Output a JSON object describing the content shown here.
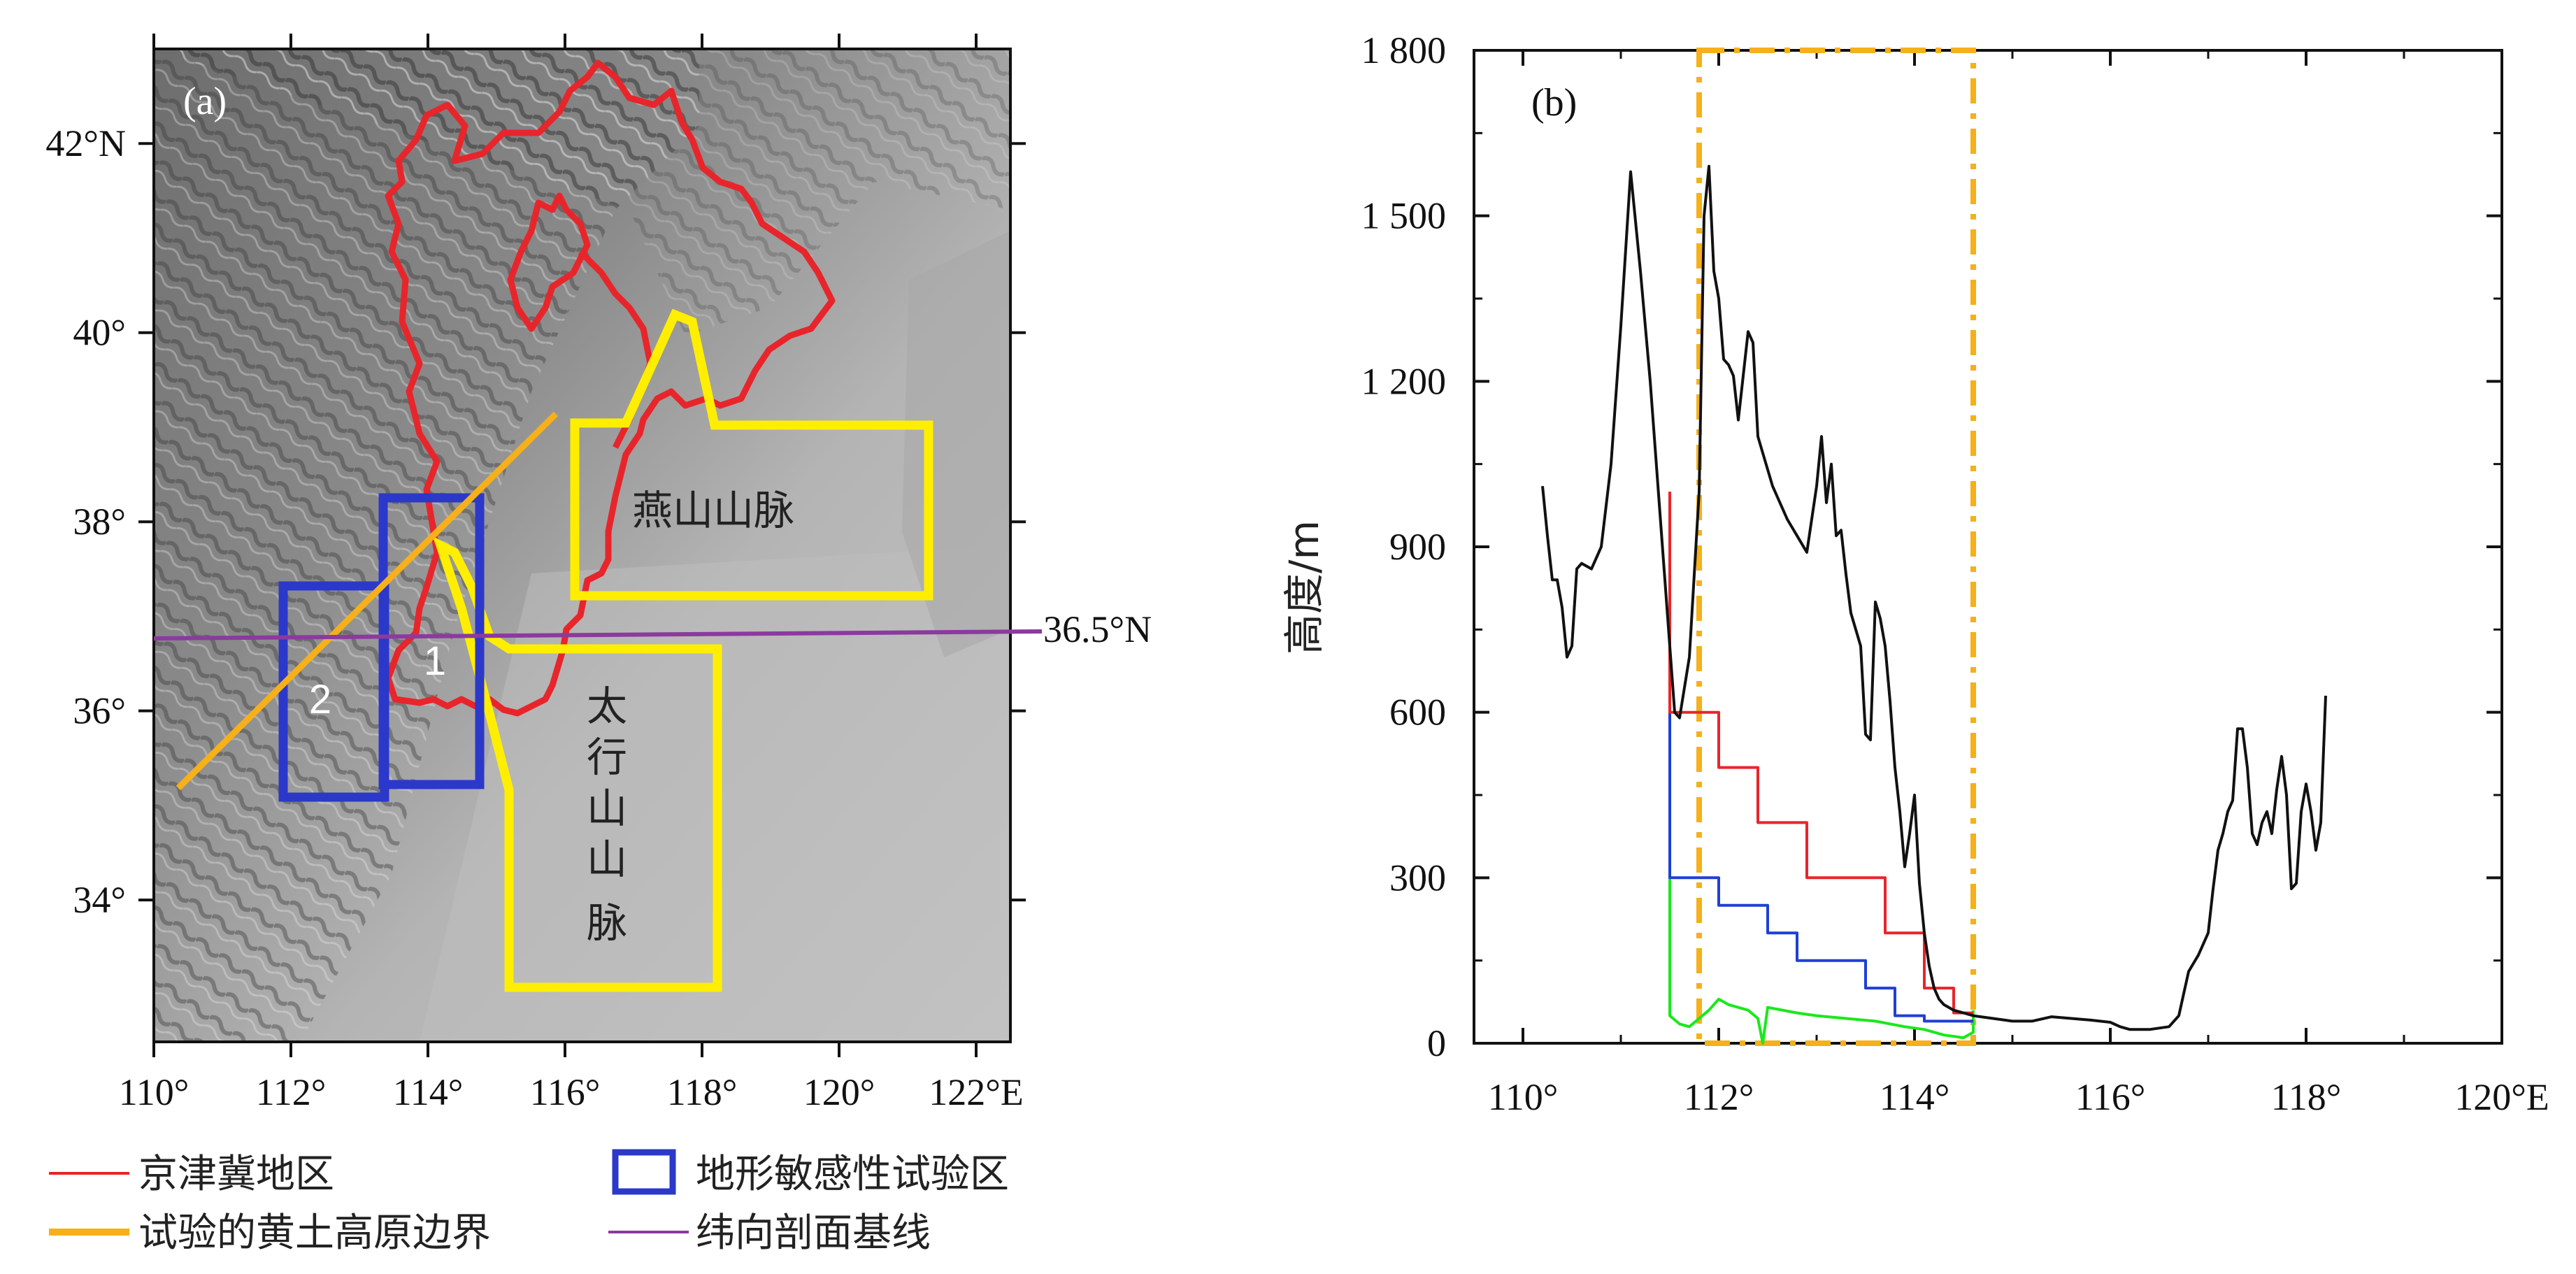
{
  "chart_data": [
    {
      "type": "map",
      "panel_label": "(a)",
      "x_ticks": [
        "110°",
        "112°",
        "114°",
        "116°",
        "118°",
        "120°",
        "122°E"
      ],
      "y_ticks": [
        "42°N",
        "40°",
        "38°",
        "36°",
        "34°"
      ],
      "xlim": [
        110,
        122.5
      ],
      "ylim": [
        32.5,
        43
      ],
      "baseline_label": "36.5°N",
      "baseline_lat": 36.5,
      "region_labels": {
        "yanshan": "燕山山脉",
        "taihang": [
          "太",
          "行",
          "山",
          "山",
          "脉"
        ],
        "box1": "1",
        "box2": "2"
      },
      "sensitivity_boxes": [
        {
          "name": "1",
          "lon": [
            113.2,
            114.7
          ],
          "lat": [
            35.2,
            38.3
          ]
        },
        {
          "name": "2",
          "lon": [
            111.8,
            113.2
          ],
          "lat": [
            35.0,
            37.5
          ]
        }
      ],
      "loess_boundary": {
        "lon": [
          110.3,
          115.8
        ],
        "lat": [
          35.3,
          39.4
        ]
      },
      "legend": [
        {
          "label": "京津冀地区",
          "color": "#e8252b",
          "style": "line"
        },
        {
          "label": "地形敏感性试验区",
          "color": "#2b38c9",
          "style": "box"
        },
        {
          "label": "试验的黄土高原边界",
          "color": "#f5b01a",
          "style": "line"
        },
        {
          "label": "纬向剖面基线",
          "color": "#8b3a9e",
          "style": "line"
        }
      ]
    },
    {
      "type": "line",
      "panel_label": "(b)",
      "ylabel": "高度/m",
      "x_ticks": [
        "110°",
        "112°",
        "114°",
        "116°",
        "118°",
        "120°E"
      ],
      "y_ticks": [
        "0",
        "300",
        "600",
        "900",
        "1 200",
        "1 500",
        "1 800"
      ],
      "xlim": [
        109.5,
        120
      ],
      "ylim": [
        0,
        1800
      ],
      "highlight_box": {
        "x": [
          111.8,
          114.6
        ],
        "color": "#f5b01a",
        "style": "dash-dot"
      },
      "series": [
        {
          "color": "#111111",
          "x": [
            110.2,
            110.25,
            110.3,
            110.35,
            110.4,
            110.45,
            110.5,
            110.55,
            110.6,
            110.7,
            110.8,
            110.9,
            111.0,
            111.1,
            111.2,
            111.3,
            111.4,
            111.5,
            111.55,
            111.6,
            111.7,
            111.8,
            111.85,
            111.9,
            111.95,
            112.0,
            112.05,
            112.1,
            112.15,
            112.2,
            112.3,
            112.35,
            112.4,
            112.45,
            112.5,
            112.55,
            112.6,
            112.7,
            112.8,
            112.9,
            113.0,
            113.05,
            113.1,
            113.15,
            113.2,
            113.25,
            113.3,
            113.35,
            113.4,
            113.45,
            113.5,
            113.55,
            113.6,
            113.65,
            113.7,
            113.75,
            113.8,
            113.85,
            113.9,
            113.95,
            114.0,
            114.05,
            114.1,
            114.15,
            114.2,
            114.25,
            114.3,
            114.4,
            114.5,
            114.6,
            114.8,
            115.0,
            115.2,
            115.4,
            115.6,
            115.8,
            116.0,
            116.1,
            116.2,
            116.4,
            116.6,
            116.7,
            116.8,
            116.9,
            117.0,
            117.05,
            117.1,
            117.15,
            117.2,
            117.25,
            117.3,
            117.35,
            117.4,
            117.45,
            117.5,
            117.55,
            117.6,
            117.65,
            117.7,
            117.75,
            117.8,
            117.85,
            117.9,
            117.95,
            118.0,
            118.05,
            118.1,
            118.15,
            118.2
          ],
          "values": [
            1010,
            920,
            840,
            840,
            790,
            700,
            720,
            860,
            870,
            860,
            900,
            1050,
            1300,
            1580,
            1400,
            1200,
            960,
            720,
            600,
            590,
            700,
            1000,
            1500,
            1590,
            1400,
            1350,
            1240,
            1230,
            1210,
            1130,
            1290,
            1270,
            1100,
            1070,
            1040,
            1010,
            990,
            950,
            920,
            890,
            1010,
            1100,
            980,
            1050,
            920,
            930,
            850,
            780,
            750,
            720,
            560,
            550,
            800,
            770,
            720,
            620,
            500,
            420,
            320,
            380,
            450,
            290,
            200,
            140,
            100,
            80,
            70,
            60,
            55,
            50,
            45,
            40,
            40,
            48,
            45,
            42,
            38,
            30,
            25,
            25,
            30,
            50,
            130,
            160,
            200,
            280,
            350,
            380,
            420,
            440,
            570,
            570,
            500,
            380,
            360,
            400,
            420,
            380,
            460,
            520,
            450,
            280,
            290,
            420,
            470,
            420,
            350,
            400,
            630
          ]
        },
        {
          "color": "#e8252b",
          "x": [
            111.5,
            111.5,
            112.0,
            112.0,
            112.4,
            112.4,
            112.9,
            112.9,
            113.7,
            113.7,
            114.1,
            114.1,
            114.4,
            114.4,
            114.6
          ],
          "values": [
            1000,
            600,
            600,
            500,
            500,
            400,
            400,
            300,
            300,
            200,
            200,
            100,
            100,
            55,
            55
          ]
        },
        {
          "color": "#1f3fd6",
          "x": [
            111.5,
            111.5,
            112.0,
            112.0,
            112.5,
            112.5,
            112.8,
            112.8,
            113.5,
            113.5,
            113.8,
            113.8,
            114.1,
            114.1,
            114.6
          ],
          "values": [
            600,
            300,
            300,
            250,
            250,
            200,
            200,
            150,
            150,
            100,
            100,
            50,
            50,
            40,
            40
          ]
        },
        {
          "color": "#1be81b",
          "x": [
            111.5,
            111.5,
            111.6,
            111.7,
            111.8,
            111.9,
            112.0,
            112.1,
            112.3,
            112.4,
            112.45,
            112.5,
            112.8,
            113.0,
            113.3,
            113.6,
            113.9,
            114.1,
            114.3,
            114.5,
            114.6,
            114.6
          ],
          "values": [
            300,
            50,
            35,
            30,
            45,
            60,
            80,
            70,
            60,
            45,
            0,
            65,
            55,
            50,
            45,
            40,
            30,
            25,
            15,
            10,
            20,
            60
          ]
        }
      ]
    }
  ]
}
